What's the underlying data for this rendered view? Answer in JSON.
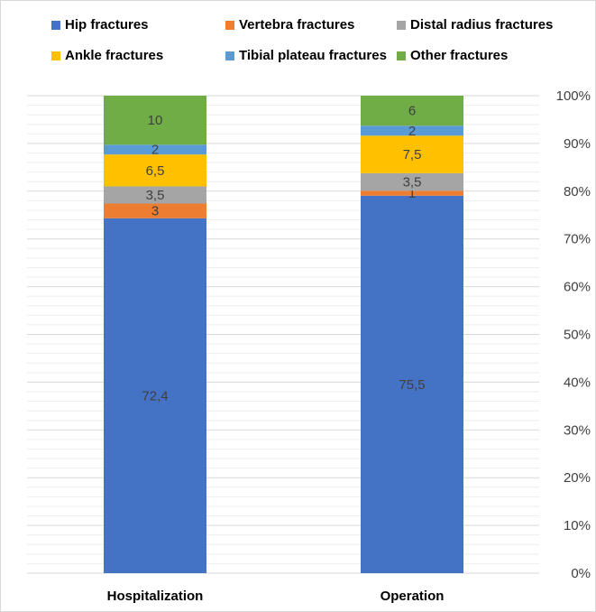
{
  "chart_data": {
    "type": "bar",
    "stacked": true,
    "normalized": true,
    "categories": [
      "Hospitalization",
      "Operation"
    ],
    "series": [
      {
        "name": "Hip fractures",
        "color": "#4472C4",
        "values": [
          72.4,
          75.5
        ],
        "labels": [
          "72,4",
          "75,5"
        ]
      },
      {
        "name": "Vertebra fractures",
        "color": "#ED7D31",
        "values": [
          3,
          1
        ],
        "labels": [
          "3",
          "1"
        ]
      },
      {
        "name": "Distal radius fractures",
        "color": "#A5A5A5",
        "values": [
          3.5,
          3.5
        ],
        "labels": [
          "3,5",
          "3,5"
        ]
      },
      {
        "name": "Ankle fractures",
        "color": "#FFC000",
        "values": [
          6.5,
          7.5
        ],
        "labels": [
          "6,5",
          "7,5"
        ]
      },
      {
        "name": "Tibial plateau fractures",
        "color": "#5B9BD5",
        "values": [
          2,
          2
        ],
        "labels": [
          "2",
          "2"
        ]
      },
      {
        "name": "Other fractures",
        "color": "#70AD47",
        "values": [
          10,
          6
        ],
        "labels": [
          "10",
          "6"
        ]
      }
    ],
    "y_axis": {
      "position": "right",
      "range": [
        0,
        100
      ],
      "ticks": [
        "0%",
        "10%",
        "20%",
        "30%",
        "40%",
        "50%",
        "60%",
        "70%",
        "80%",
        "90%",
        "100%"
      ]
    },
    "legend_position": "top",
    "grid": true,
    "title": "",
    "xlabel": "",
    "ylabel": ""
  }
}
